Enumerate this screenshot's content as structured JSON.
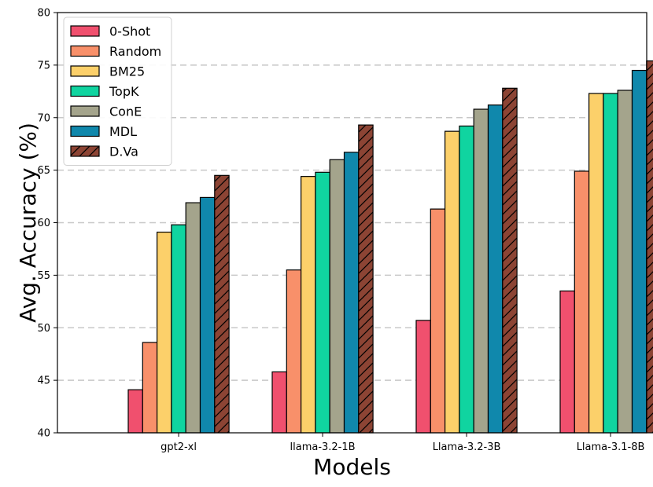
{
  "chart_data": {
    "type": "bar",
    "title": "",
    "xlabel": "Models",
    "ylabel": "Avg. Accuracy (%)",
    "ylim": [
      40,
      80
    ],
    "yticks": [
      40,
      45,
      50,
      55,
      60,
      65,
      70,
      75,
      80
    ],
    "grid": "y-dashed",
    "legend_position": "top-left",
    "categories": [
      "gpt2-xl",
      "llama-3.2-1B",
      "Llama-3.2-3B",
      "Llama-3.1-8B"
    ],
    "series": [
      {
        "name": "0-Shot",
        "color": "#f0506e",
        "hatch": false,
        "values": [
          44.1,
          45.8,
          50.7,
          53.5
        ]
      },
      {
        "name": "Random",
        "color": "#f8906a",
        "hatch": false,
        "values": [
          48.6,
          55.5,
          61.3,
          64.9
        ]
      },
      {
        "name": "BM25",
        "color": "#fcd06a",
        "hatch": false,
        "values": [
          59.1,
          64.4,
          68.7,
          72.3
        ]
      },
      {
        "name": "TopK",
        "color": "#10d4a0",
        "hatch": false,
        "values": [
          59.8,
          64.8,
          69.2,
          72.3
        ]
      },
      {
        "name": "ConE",
        "color": "#a4a48c",
        "hatch": false,
        "values": [
          61.9,
          66.0,
          70.8,
          72.6
        ]
      },
      {
        "name": "MDL",
        "color": "#1088ac",
        "hatch": false,
        "values": [
          62.4,
          66.7,
          71.2,
          74.5
        ]
      },
      {
        "name": "D.Va",
        "color": "#8c4434",
        "hatch": true,
        "values": [
          64.5,
          69.3,
          72.8,
          75.4
        ]
      }
    ]
  }
}
